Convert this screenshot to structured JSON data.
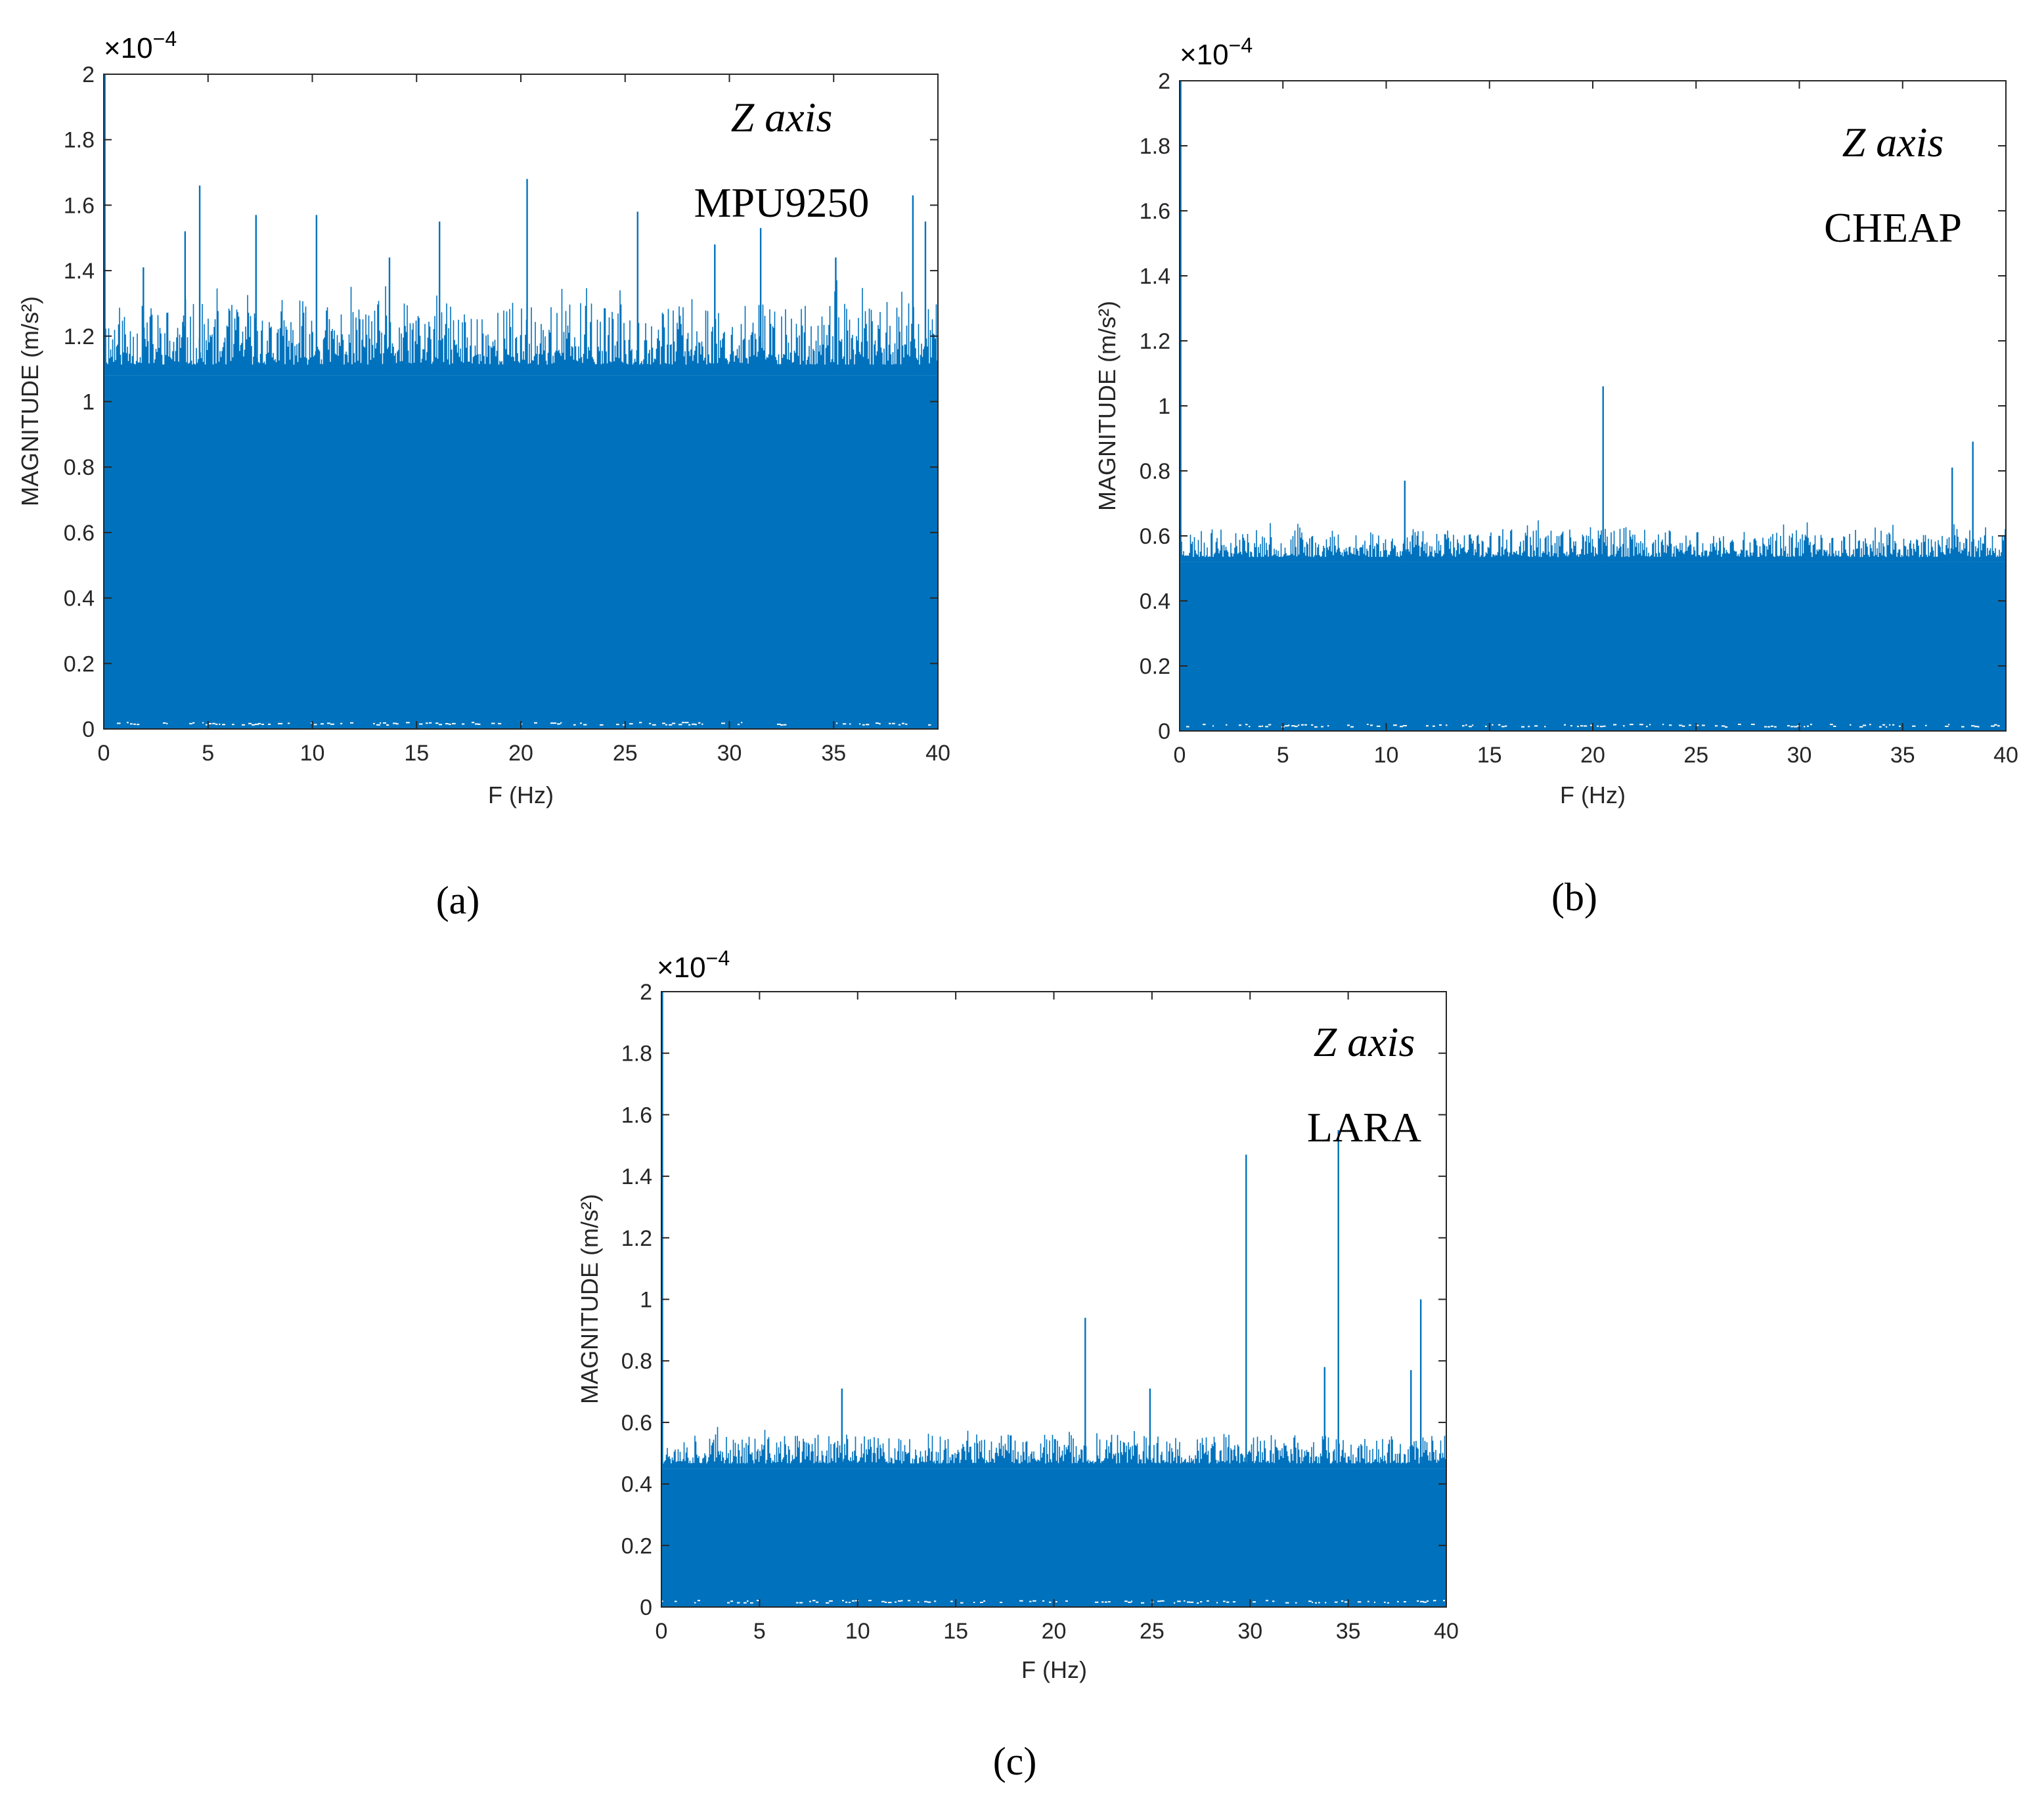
{
  "chart_data": [
    {
      "type": "bar",
      "panel": "a",
      "caption": "(a)",
      "title": "",
      "annotation_axis": "Z axis",
      "annotation_sensor": "MPU9250",
      "xlabel": "F (Hz)",
      "ylabel": "MAGNITUDE (m/s²)",
      "y_exponent_base": "×10",
      "y_exponent_power": "−4",
      "xlim": [
        0,
        40
      ],
      "ylim": [
        0,
        2
      ],
      "x_ticks": [
        "0",
        "5",
        "10",
        "15",
        "20",
        "25",
        "30",
        "35",
        "40"
      ],
      "y_ticks": [
        "0",
        "0.2",
        "0.4",
        "0.6",
        "0.8",
        "1",
        "1.2",
        "1.4",
        "1.6",
        "1.8",
        "2"
      ],
      "color": "#0072BD",
      "noise_floor": 1.08,
      "noise_top": 1.3,
      "peaks": [
        {
          "x": 0.05,
          "y": 2.0
        },
        {
          "x": 1.9,
          "y": 1.41
        },
        {
          "x": 3.9,
          "y": 1.52
        },
        {
          "x": 4.6,
          "y": 1.66
        },
        {
          "x": 7.3,
          "y": 1.57
        },
        {
          "x": 10.2,
          "y": 1.57
        },
        {
          "x": 13.7,
          "y": 1.44
        },
        {
          "x": 16.1,
          "y": 1.55
        },
        {
          "x": 20.3,
          "y": 1.68
        },
        {
          "x": 25.6,
          "y": 1.58
        },
        {
          "x": 29.3,
          "y": 1.48
        },
        {
          "x": 31.5,
          "y": 1.53
        },
        {
          "x": 35.1,
          "y": 1.44
        },
        {
          "x": 38.8,
          "y": 1.63
        },
        {
          "x": 39.4,
          "y": 1.55
        }
      ]
    },
    {
      "type": "bar",
      "panel": "b",
      "caption": "(b)",
      "title": "",
      "annotation_axis": "Z axis",
      "annotation_sensor": "CHEAP",
      "xlabel": "F (Hz)",
      "ylabel": "MAGNITUDE (m/s²)",
      "y_exponent_base": "×10",
      "y_exponent_power": "−4",
      "xlim": [
        0,
        40
      ],
      "ylim": [
        0,
        2
      ],
      "x_ticks": [
        "0",
        "5",
        "10",
        "15",
        "20",
        "25",
        "30",
        "35",
        "40"
      ],
      "y_ticks": [
        "0",
        "0.2",
        "0.4",
        "0.6",
        "0.8",
        "1",
        "1.2",
        "1.4",
        "1.6",
        "1.8",
        "2"
      ],
      "color": "#0072BD",
      "noise_floor": 0.52,
      "noise_top": 0.62,
      "peaks": [
        {
          "x": 0.05,
          "y": 2.0
        },
        {
          "x": 10.9,
          "y": 0.77
        },
        {
          "x": 20.5,
          "y": 1.06
        },
        {
          "x": 37.4,
          "y": 0.81
        },
        {
          "x": 38.4,
          "y": 0.89
        }
      ]
    },
    {
      "type": "bar",
      "panel": "c",
      "caption": "(c)",
      "title": "",
      "annotation_axis": "Z axis",
      "annotation_sensor": "LARA",
      "xlabel": "F (Hz)",
      "ylabel": "MAGNITUDE (m/s²)",
      "y_exponent_base": "×10",
      "y_exponent_power": "−4",
      "xlim": [
        0,
        40
      ],
      "ylim": [
        0,
        2
      ],
      "x_ticks": [
        "0",
        "5",
        "10",
        "15",
        "20",
        "25",
        "30",
        "35",
        "40"
      ],
      "y_ticks": [
        "0",
        "0.2",
        "0.4",
        "0.6",
        "0.8",
        "1",
        "1.2",
        "1.4",
        "1.6",
        "1.8",
        "2"
      ],
      "color": "#0072BD",
      "noise_floor": 0.45,
      "noise_top": 0.56,
      "peaks": [
        {
          "x": 0.05,
          "y": 2.0
        },
        {
          "x": 9.2,
          "y": 0.71
        },
        {
          "x": 21.6,
          "y": 0.94
        },
        {
          "x": 24.9,
          "y": 0.71
        },
        {
          "x": 29.8,
          "y": 1.47
        },
        {
          "x": 33.8,
          "y": 0.78
        },
        {
          "x": 34.5,
          "y": 1.55
        },
        {
          "x": 38.2,
          "y": 0.77
        },
        {
          "x": 38.7,
          "y": 1.0
        }
      ]
    }
  ]
}
